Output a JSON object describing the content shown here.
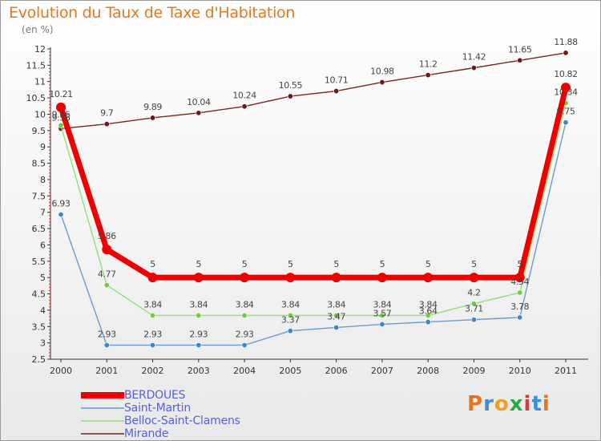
{
  "title": "Evolution du Taux de Taxe d'Habitation",
  "unit_label": "(en %)",
  "logo_text": "Proxiti",
  "logo_colors": [
    "#e8721c",
    "#3b8fd8",
    "#f0a020",
    "#2ba84a",
    "#d83a3a",
    "#3b8fd8",
    "#e8721c"
  ],
  "chart_data": {
    "type": "line",
    "x": [
      "2000",
      "2001",
      "2002",
      "2003",
      "2004",
      "2005",
      "2006",
      "2007",
      "2008",
      "2009",
      "2010",
      "2011"
    ],
    "ylim": [
      2.5,
      12
    ],
    "y_ticks": [
      "2.5",
      "3",
      "3.5",
      "4",
      "4.5",
      "5",
      "5.5",
      "6",
      "6.5",
      "7",
      "7.5",
      "8",
      "8.5",
      "9",
      "9.5",
      "10",
      "10.5",
      "11",
      "11.5",
      "12"
    ],
    "grid": false,
    "legend_position": "bottom-left",
    "series": [
      {
        "name": "BERDOUES",
        "color": "#ee0000",
        "marker_color": "#ee0000",
        "width": 7,
        "marker_r": 6,
        "values": [
          10.21,
          5.86,
          5,
          5,
          5,
          5,
          5,
          5,
          5,
          5,
          5,
          10.82
        ],
        "labels": [
          "10.21",
          "5.86",
          "5",
          "5",
          "5",
          "5",
          "5",
          "5",
          "5",
          "5",
          "5",
          "10.82"
        ]
      },
      {
        "name": "Saint-Martin",
        "color": "#6a9bd0",
        "marker_color": "#3a86c8",
        "width": 1.4,
        "marker_r": 3.2,
        "values": [
          6.93,
          2.93,
          2.93,
          2.93,
          2.93,
          3.37,
          3.47,
          3.57,
          3.64,
          3.71,
          3.78,
          9.75
        ],
        "labels": [
          "6.93",
          "2.93",
          "2.93",
          "2.93",
          "2.93",
          "3.37",
          "3.47",
          "3.57",
          "3.64",
          "3.71",
          "3.78",
          "9.75"
        ]
      },
      {
        "name": "Belloc-Saint-Clamens",
        "color": "#8ee07a",
        "marker_color": "#6ccf3a",
        "width": 1.4,
        "marker_r": 3.2,
        "values": [
          9.66,
          4.77,
          3.84,
          3.84,
          3.84,
          3.84,
          3.84,
          3.84,
          3.84,
          4.2,
          4.54,
          10.34
        ],
        "labels": [
          "9.66",
          "4.77",
          "3.84",
          "3.84",
          "3.84",
          "3.84",
          "3.84",
          "3.84",
          "3.84",
          "4.2",
          "4.54",
          "10.34"
        ]
      },
      {
        "name": "Mirande",
        "color": "#7a2424",
        "marker_color": "#6a1a1a",
        "width": 1.4,
        "marker_r": 3.2,
        "values": [
          9.56,
          9.7,
          9.89,
          10.04,
          10.24,
          10.55,
          10.71,
          10.98,
          11.2,
          11.42,
          11.65,
          11.88
        ],
        "labels": [
          "9.56",
          "9.7",
          "9.89",
          "10.04",
          "10.24",
          "10.55",
          "10.71",
          "10.98",
          "11.2",
          "11.42",
          "11.65",
          "11.88"
        ]
      }
    ]
  }
}
